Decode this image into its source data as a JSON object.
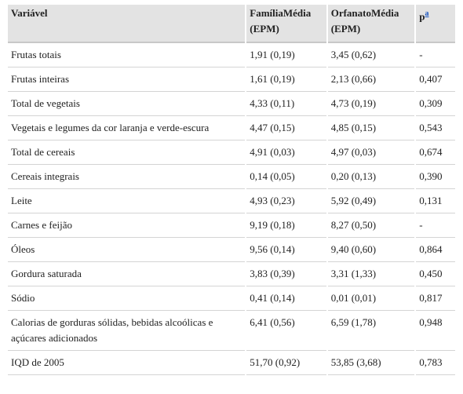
{
  "table": {
    "header": [
      "Variável",
      "FamíliaMédia (EPM)",
      "OrfanatoMédia (EPM)",
      "p"
    ],
    "header_note": "a",
    "rows": [
      [
        "Frutas totais",
        "1,91 (0,19)",
        "3,45 (0,62)",
        "-"
      ],
      [
        "Frutas inteiras",
        "1,61 (0,19)",
        "2,13 (0,66)",
        "0,407"
      ],
      [
        "Total de vegetais",
        "4,33 (0,11)",
        "4,73 (0,19)",
        "0,309"
      ],
      [
        "Vegetais e legumes da cor laranja e verde-escura",
        "4,47 (0,15)",
        "4,85 (0,15)",
        "0,543"
      ],
      [
        "Total de cereais",
        "4,91 (0,03)",
        "4,97 (0,03)",
        "0,674"
      ],
      [
        "Cereais integrais",
        "0,14 (0,05)",
        "0,20 (0,13)",
        "0,390"
      ],
      [
        "Leite",
        "4,93 (0,23)",
        "5,92 (0,49)",
        "0,131"
      ],
      [
        "Carnes e feijão",
        "9,19 (0,18)",
        "8,27 (0,50)",
        "-"
      ],
      [
        "Óleos",
        "9,56 (0,14)",
        "9,40 (0,60)",
        "0,864"
      ],
      [
        "Gordura saturada",
        "3,83 (0,39)",
        "3,31 (1,33)",
        "0,450"
      ],
      [
        "Sódio",
        "0,41 (0,14)",
        "0,01 (0,01)",
        "0,817"
      ],
      [
        "Calorias de gorduras sólidas, bebidas alcoólicas e açúcares adicionados",
        "6,41 (0,56)",
        "6,59 (1,78)",
        "0,948"
      ],
      [
        "IQD de 2005",
        "51,70 (0,92)",
        "53,85 (3,68)",
        "0,783"
      ]
    ]
  }
}
